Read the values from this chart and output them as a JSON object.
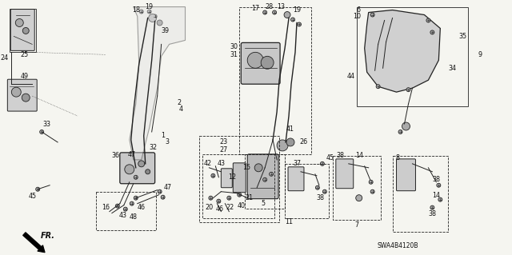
{
  "background_color": "#f5f5f0",
  "diagram_code": "SWA4B4120B",
  "fig_width": 6.4,
  "fig_height": 3.19,
  "dpi": 100,
  "text_color": "#111111",
  "line_color": "#222222",
  "part_label_fs": 5.8
}
